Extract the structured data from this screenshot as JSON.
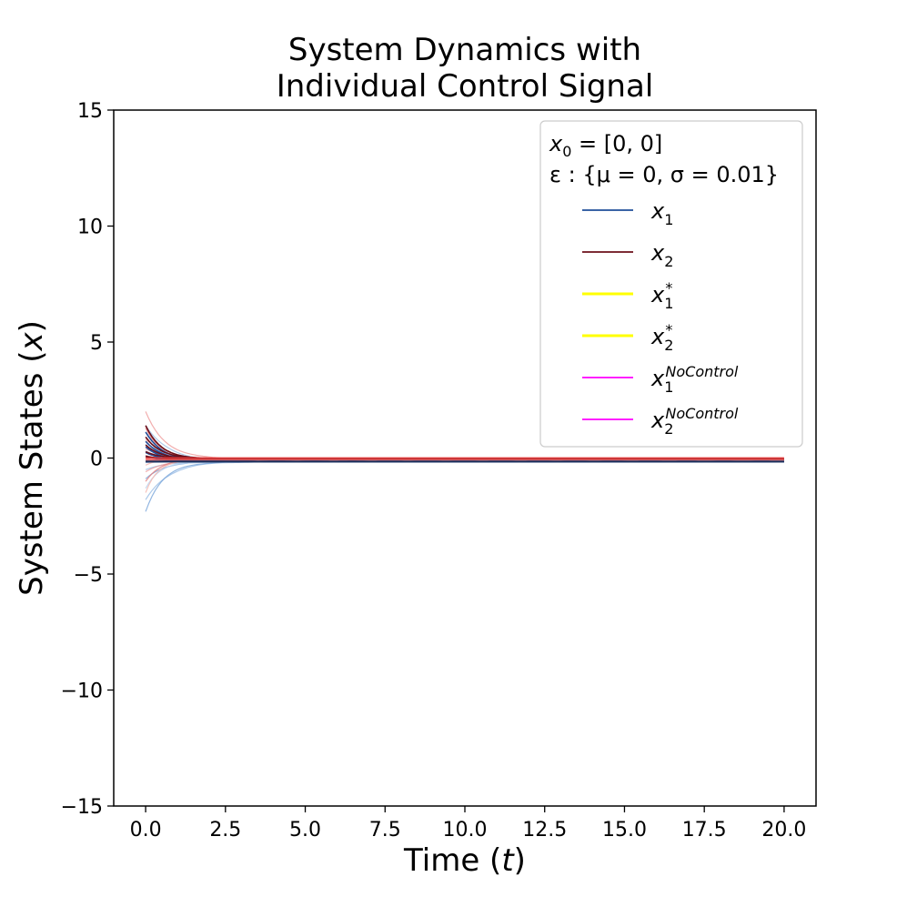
{
  "chart_data": {
    "type": "line",
    "title_lines": [
      "System Dynamics with",
      "Individual Control Signal"
    ],
    "xlabel": "Time (t)",
    "ylabel": "System States (x)",
    "xlim": [
      -1.0,
      21.0
    ],
    "ylim": [
      -15,
      15
    ],
    "xticks": [
      "0.0",
      "2.5",
      "5.0",
      "7.5",
      "10.0",
      "12.5",
      "15.0",
      "17.5",
      "20.0"
    ],
    "xtick_values": [
      0,
      2.5,
      5,
      7.5,
      10,
      12.5,
      15,
      17.5,
      20
    ],
    "yticks": [
      "−15",
      "−10",
      "−5",
      "0",
      "5",
      "10",
      "15"
    ],
    "ytick_values": [
      -15,
      -10,
      -5,
      0,
      5,
      10,
      15
    ],
    "grid": false,
    "legend_placement": "top-right",
    "legend_notes": [
      "x₀ = [0, 0]",
      "ε : {μ = 0, σ = 0.01}"
    ],
    "legend": [
      {
        "label": "x₁",
        "color": "#1f4e9a"
      },
      {
        "label": "x₂",
        "color": "#6b0f1a"
      },
      {
        "label": "x₁*",
        "color": "#ffff00"
      },
      {
        "label": "x₂*",
        "color": "#ffff00"
      },
      {
        "label": "x₁^NoControl",
        "color": "#ff00ff"
      },
      {
        "label": "x₂^NoControl",
        "color": "#ff00ff"
      }
    ],
    "x1_initial_values": [
      1.4,
      0.9,
      0.6,
      0.3,
      0.1,
      -0.2,
      -0.5,
      -0.9,
      -1.3,
      -1.8,
      -2.3
    ],
    "x2_initial_values": [
      2.0,
      1.3,
      0.8,
      0.4,
      0.1,
      -0.3,
      -0.6,
      -1.0,
      -1.5
    ],
    "x1_steady_state": -0.15,
    "x2_steady_state": -0.05,
    "x1_star": 0.0,
    "x2_star": 0.0
  }
}
